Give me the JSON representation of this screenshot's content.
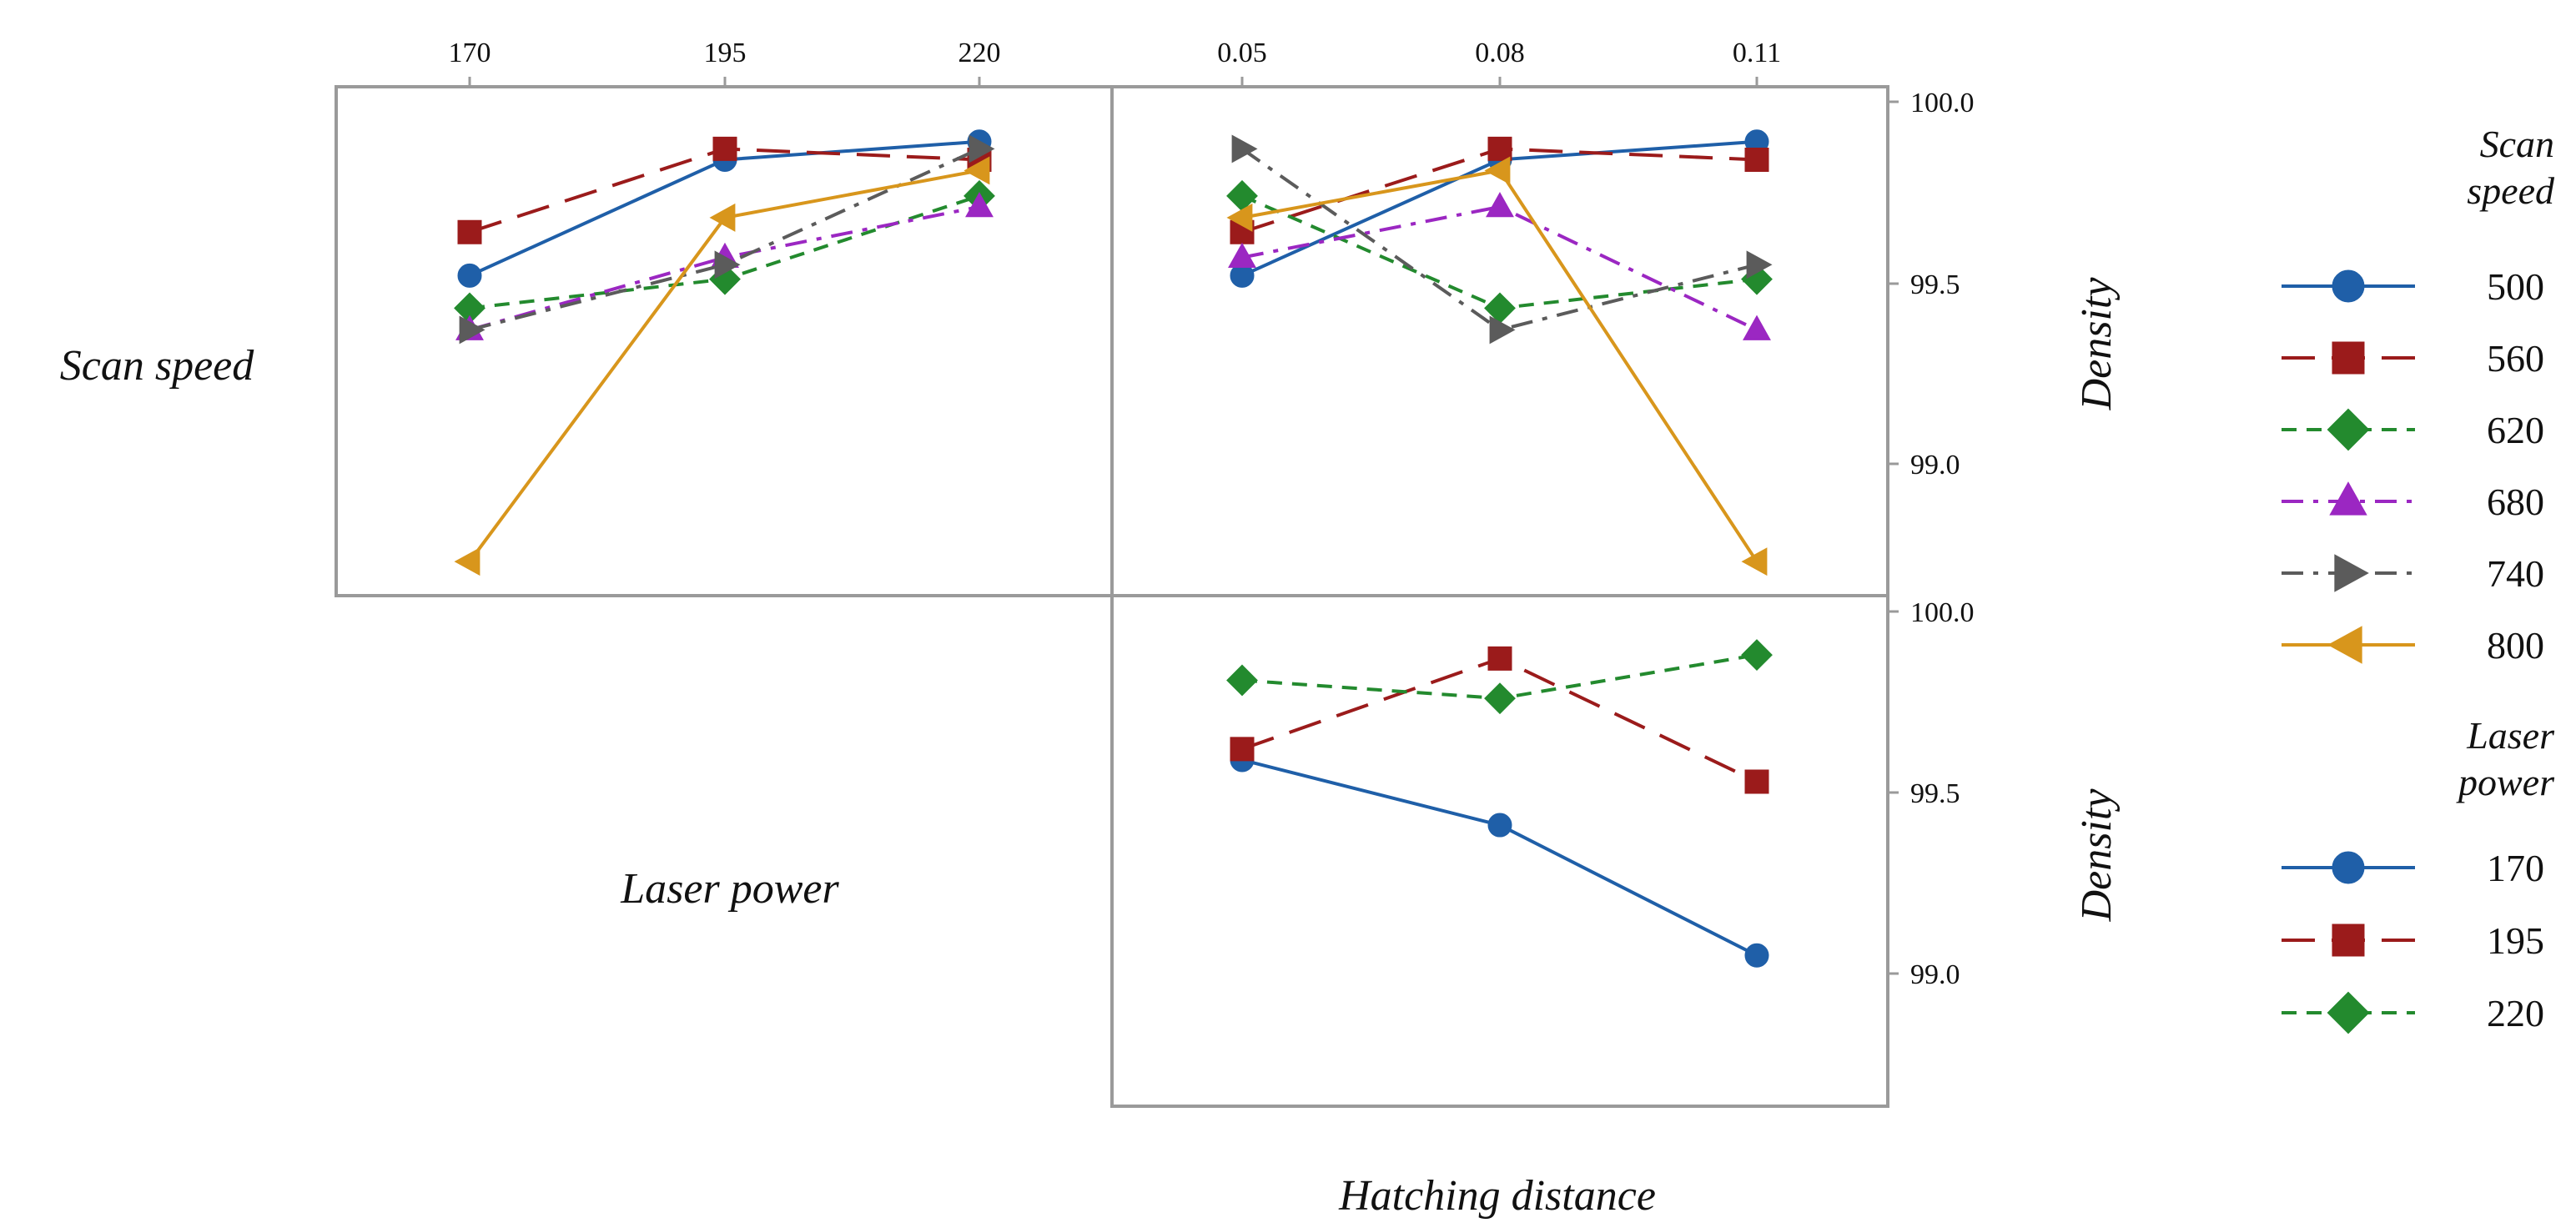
{
  "chart_data": [
    {
      "type": "line",
      "panel": "top-left",
      "xlabel": "Laser power",
      "ylabel": "Density",
      "row_label": "Scan speed",
      "x_tick_labels": [
        "170",
        "195",
        "220"
      ],
      "x": [
        170,
        195,
        220
      ],
      "ylim": [
        98.6,
        100.0
      ],
      "series": [
        {
          "name": "500",
          "color": "#1f5fa8",
          "marker": "circle",
          "dash": "solid",
          "values": [
            99.52,
            99.84,
            99.89
          ]
        },
        {
          "name": "560",
          "color": "#9b1b1b",
          "marker": "square",
          "dash": "long-dash",
          "values": [
            99.64,
            99.87,
            99.84
          ]
        },
        {
          "name": "620",
          "color": "#238a2e",
          "marker": "diamond",
          "dash": "dashed",
          "values": [
            99.43,
            99.51,
            99.74
          ]
        },
        {
          "name": "680",
          "color": "#9b27c2",
          "marker": "triangle-up",
          "dash": "dash-dot",
          "values": [
            99.37,
            99.57,
            99.71
          ]
        },
        {
          "name": "740",
          "color": "#5b5b5b",
          "marker": "triangle-right",
          "dash": "dash-dot",
          "values": [
            99.37,
            99.55,
            99.87
          ]
        },
        {
          "name": "800",
          "color": "#d8961c",
          "marker": "triangle-left",
          "dash": "solid",
          "values": [
            98.73,
            99.68,
            99.81
          ]
        }
      ]
    },
    {
      "type": "line",
      "panel": "top-right",
      "xlabel": "Hatching distance",
      "ylabel": "Density",
      "x_tick_labels": [
        "0.05",
        "0.08",
        "0.11"
      ],
      "x": [
        0.05,
        0.08,
        0.11
      ],
      "y_tick_labels": [
        "100.0",
        "99.5",
        "99.0"
      ],
      "ylim": [
        98.6,
        100.0
      ],
      "series": [
        {
          "name": "500",
          "values": [
            99.52,
            99.84,
            99.89
          ]
        },
        {
          "name": "560",
          "values": [
            99.64,
            99.87,
            99.84
          ]
        },
        {
          "name": "620",
          "values": [
            99.74,
            99.43,
            99.51
          ]
        },
        {
          "name": "680",
          "values": [
            99.57,
            99.71,
            99.37
          ]
        },
        {
          "name": "740",
          "values": [
            99.87,
            99.37,
            99.55
          ]
        },
        {
          "name": "800",
          "values": [
            99.68,
            99.81,
            98.73
          ]
        }
      ]
    },
    {
      "type": "line",
      "panel": "bottom-right",
      "xlabel": "Hatching distance",
      "ylabel": "Density",
      "row_label": "Laser power",
      "x": [
        0.05,
        0.08,
        0.11
      ],
      "y_tick_labels": [
        "100.0",
        "99.5",
        "99.0"
      ],
      "ylim": [
        98.6,
        100.0
      ],
      "series": [
        {
          "name": "170",
          "color": "#1f5fa8",
          "marker": "circle",
          "dash": "solid",
          "values": [
            99.59,
            99.41,
            99.05
          ]
        },
        {
          "name": "195",
          "color": "#9b1b1b",
          "marker": "square",
          "dash": "long-dash",
          "values": [
            99.62,
            99.87,
            99.53
          ]
        },
        {
          "name": "220",
          "color": "#238a2e",
          "marker": "diamond",
          "dash": "dashed",
          "values": [
            99.81,
            99.76,
            99.88
          ]
        }
      ]
    }
  ],
  "labels": {
    "row_scan_speed": "Scan speed",
    "row_laser_power": "Laser power",
    "density_top": "Density",
    "density_bottom": "Density",
    "hatching_distance": "Hatching distance"
  },
  "legend": {
    "scan_speed_title": [
      "Scan",
      "speed"
    ],
    "laser_power_title": [
      "Laser",
      "power"
    ]
  }
}
